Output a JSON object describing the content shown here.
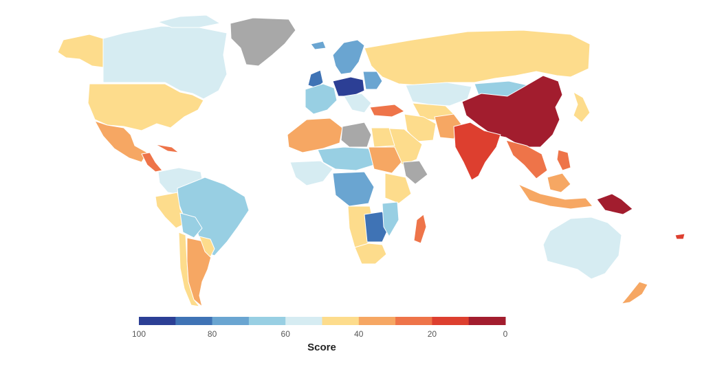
{
  "legend": {
    "title": "Score",
    "ticks": [
      "100",
      "80",
      "60",
      "40",
      "20",
      "0"
    ],
    "colors": [
      "#2c3f95",
      "#3f73b5",
      "#6aa5d1",
      "#98cfe3",
      "#d6ecf2",
      "#fddc8c",
      "#f6a763",
      "#ee7449",
      "#dd3f2f",
      "#a21d2e"
    ]
  },
  "no_data_color": "#a8a8a8",
  "ocean_color": "#ffffff"
}
